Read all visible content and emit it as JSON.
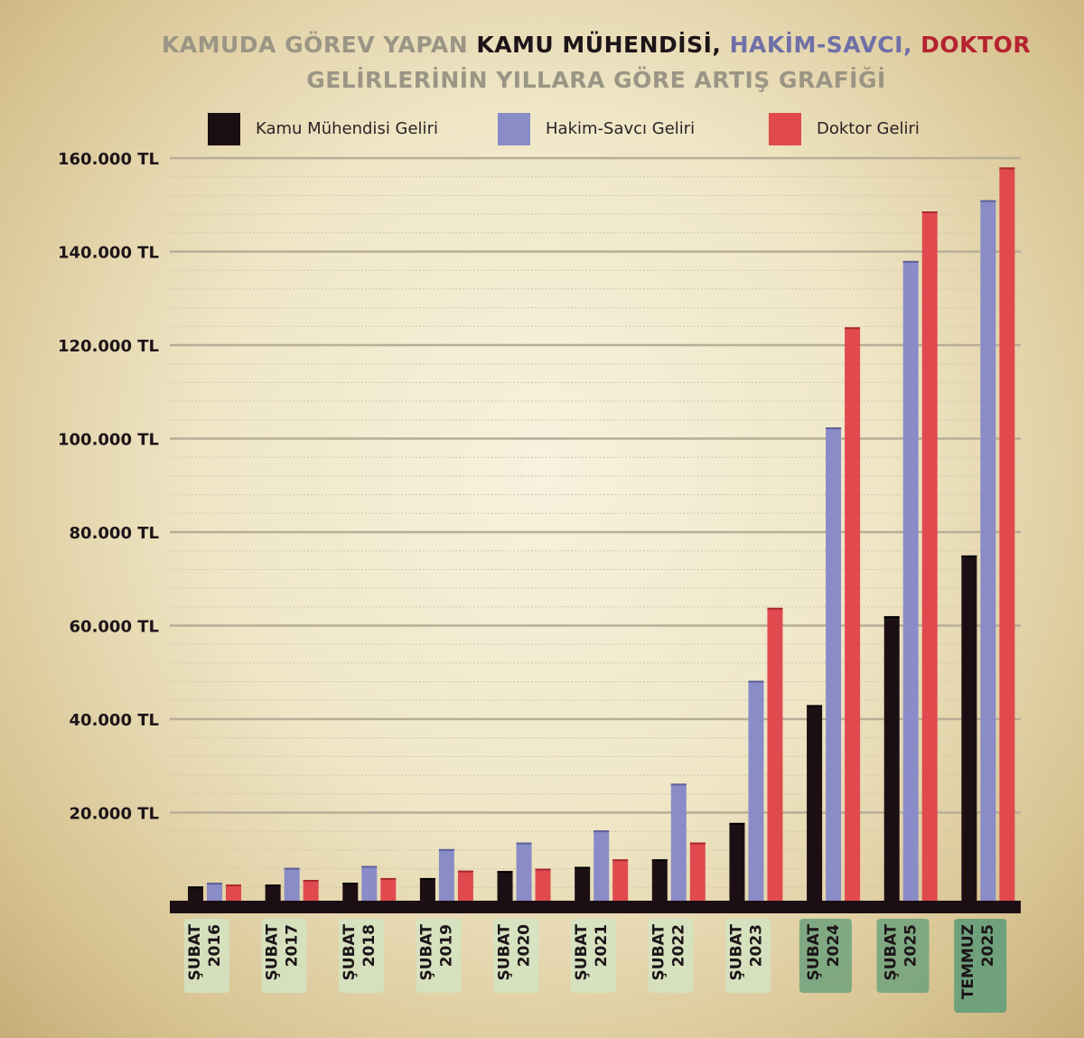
{
  "title": {
    "line1_part1": "KAMUDA GÖREV YAPAN ",
    "line1_part2": "KAMU MÜHENDİSİ, ",
    "line1_part3": "HAKİM-SAVCI, ",
    "line1_part4": "DOKTOR",
    "line2": "GELİRLERİNİN YILLARA GÖRE ARTIŞ GRAFİĞİ"
  },
  "colors": {
    "engineer": "#1c0f14",
    "judge": "#8a8cc7",
    "doctor": "#e04a4e",
    "grid_major": "#b8ad96",
    "grid_minor": "#cfc6b0",
    "axis": "#1c0f14",
    "label_bg_light": "#d4e3c2",
    "label_bg_dark": "#6fa27c"
  },
  "chart_data": {
    "type": "bar",
    "title": "KAMUDA GÖREV YAPAN KAMU MÜHENDİSİ, HAKİM-SAVCI, DOKTOR GELİRLERİNİN YILLARA GÖRE ARTIŞ GRAFİĞİ",
    "categories": [
      [
        "ŞUBAT",
        "2016"
      ],
      [
        "ŞUBAT",
        "2017"
      ],
      [
        "ŞUBAT",
        "2018"
      ],
      [
        "ŞUBAT",
        "2019"
      ],
      [
        "ŞUBAT",
        "2020"
      ],
      [
        "ŞUBAT",
        "2021"
      ],
      [
        "ŞUBAT",
        "2022"
      ],
      [
        "ŞUBAT",
        "2023"
      ],
      [
        "ŞUBAT",
        "2024"
      ],
      [
        "ŞUBAT",
        "2025"
      ],
      [
        "TEMMUZ",
        "2025"
      ]
    ],
    "series": [
      {
        "name": "Kamu Mühendisi Geliri",
        "values": [
          4200,
          4600,
          5000,
          6000,
          7500,
          8400,
          10000,
          17800,
          43000,
          62000,
          75000
        ]
      },
      {
        "name": "Hakim-Savcı Geliri",
        "values": [
          5000,
          8200,
          8600,
          12200,
          13600,
          16200,
          26200,
          48200,
          102400,
          138000,
          151000
        ]
      },
      {
        "name": "Doktor Geliri",
        "values": [
          4600,
          5600,
          6000,
          7600,
          8000,
          10000,
          13600,
          63800,
          123800,
          148600,
          158000
        ]
      }
    ],
    "yticks": [
      "20.000 TL",
      "40.000 TL",
      "60.000 TL",
      "80.000 TL",
      "100.000 TL",
      "120.000 TL",
      "140.000 TL",
      "160.000 TL"
    ],
    "ytick_values": [
      20000,
      40000,
      60000,
      80000,
      100000,
      120000,
      140000,
      160000
    ],
    "ylim": [
      0,
      160000
    ],
    "minor_step": 4000,
    "legend_position": "top",
    "grid": true
  }
}
